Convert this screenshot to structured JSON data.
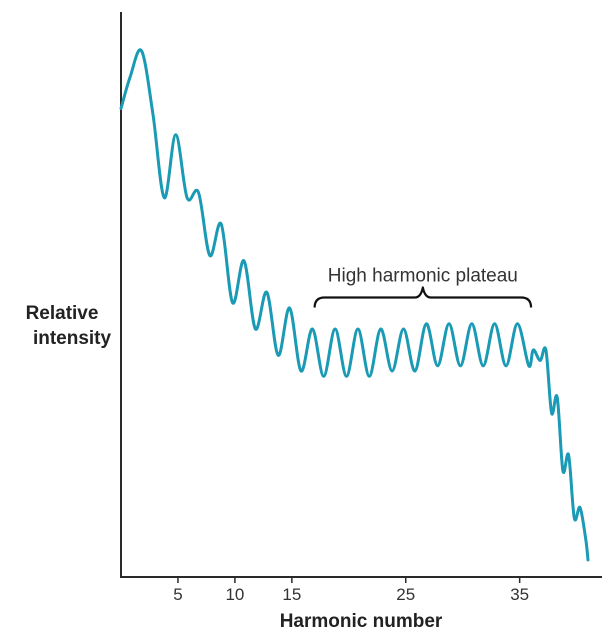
{
  "chart_data": {
    "type": "line",
    "xlabel": "Harmonic number",
    "ylabel": "Relative intensity",
    "xticks": [
      5,
      10,
      15,
      25,
      35
    ],
    "xlim": [
      0,
      41
    ],
    "ylim": [
      0,
      100
    ],
    "y_axis_ticks": false,
    "grid": false,
    "line_color": "#1a9ab5",
    "series": [
      {
        "x": [
          0,
          0.8,
          1.8,
          2.8,
          3.8,
          4.8,
          5.8,
          6.8,
          7.8,
          8.8,
          9.8,
          10.8,
          11.8,
          12.8,
          13.8,
          14.8,
          15.8,
          16.8,
          17.8,
          18.8,
          19.8,
          20.8,
          21.8,
          22.8,
          23.8,
          24.8,
          25.8,
          26.8,
          27.8,
          28.8,
          29.8,
          30.8,
          31.8,
          32.8,
          33.8,
          34.8,
          35.8,
          36.2,
          36.8,
          37.3,
          37.8,
          38.3,
          38.8,
          39.3,
          39.8,
          40.3,
          40.8,
          41
        ],
        "y": [
          86,
          92,
          97,
          85,
          69,
          81,
          69,
          70,
          58,
          64,
          49,
          57,
          44,
          51,
          39,
          48,
          36,
          44,
          35,
          44,
          35,
          44,
          35,
          44,
          36,
          44,
          36,
          45,
          37,
          45,
          37,
          45,
          37,
          45,
          37,
          45,
          37,
          40,
          38,
          40,
          28,
          31,
          17,
          20,
          8,
          10,
          4,
          0
        ]
      }
    ],
    "annotations": [
      {
        "text": "High harmonic plateau",
        "x_start": 17,
        "x_end": 36,
        "y": 50
      }
    ]
  }
}
